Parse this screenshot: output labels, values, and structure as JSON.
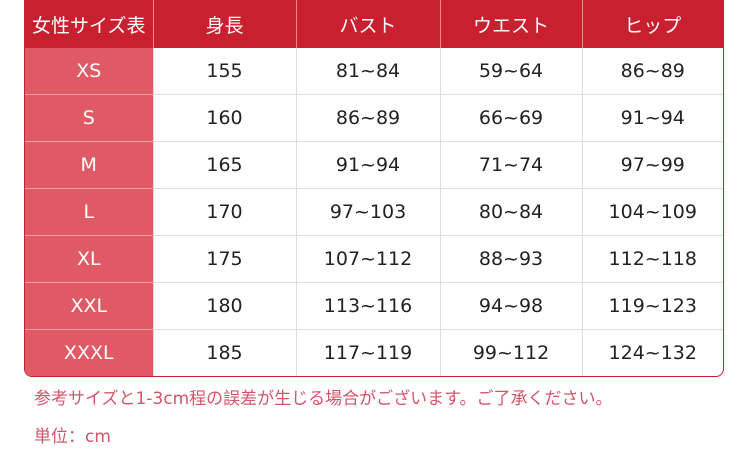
{
  "table": {
    "headers": [
      "女性サイズ表",
      "身長",
      "バスト",
      "ウエスト",
      "ヒップ"
    ],
    "rows": [
      [
        "XS",
        "155",
        "81~84",
        "59~64",
        "86~89"
      ],
      [
        "S",
        "160",
        "86~89",
        "66~69",
        "91~94"
      ],
      [
        "M",
        "165",
        "91~94",
        "71~74",
        "97~99"
      ],
      [
        "L",
        "170",
        "97~103",
        "80~84",
        "104~109"
      ],
      [
        "XL",
        "175",
        "107~112",
        "88~93",
        "112~118"
      ],
      [
        "XXL",
        "180",
        "113~116",
        "94~98",
        "119~123"
      ],
      [
        "XXXL",
        "185",
        "117~119",
        "99~112",
        "124~132"
      ]
    ]
  },
  "notes": {
    "tolerance": "参考サイズと1-3cm程の誤差が生じる場合がございます。ご了承ください。",
    "unit": "単位：cm"
  },
  "colors": {
    "header": "#c8202f",
    "size_column": "#e05a66",
    "note": "#d6546a"
  }
}
